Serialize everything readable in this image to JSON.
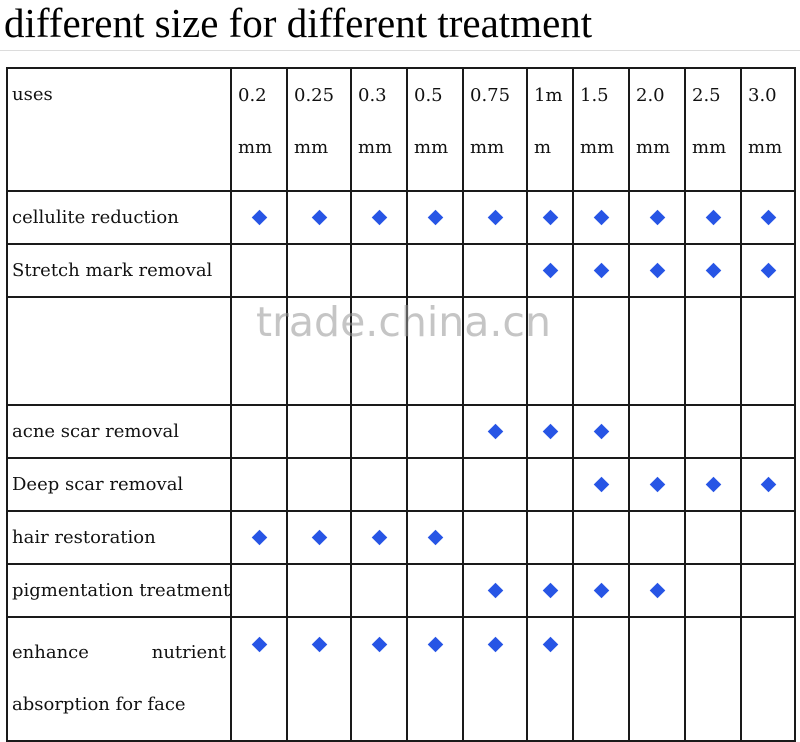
{
  "title": "different size for different treatment",
  "watermark": "trade.china.cn",
  "table": {
    "header_label": "uses",
    "sizes": [
      {
        "top": "0.2",
        "bottom": "mm"
      },
      {
        "top": "0.25",
        "bottom": "mm"
      },
      {
        "top": "0.3",
        "bottom": "mm"
      },
      {
        "top": "0.5",
        "bottom": "mm"
      },
      {
        "top": "0.75",
        "bottom": "mm"
      },
      {
        "top": "1m",
        "bottom": "m"
      },
      {
        "top": "1.5",
        "bottom": "mm"
      },
      {
        "top": "2.0",
        "bottom": "mm"
      },
      {
        "top": "2.5",
        "bottom": "mm"
      },
      {
        "top": "3.0",
        "bottom": "mm"
      }
    ],
    "rows": [
      {
        "use": "cellulite reduction",
        "marks": [
          1,
          1,
          1,
          1,
          1,
          1,
          1,
          1,
          1,
          1
        ]
      },
      {
        "use": "Stretch mark removal",
        "marks": [
          0,
          0,
          0,
          0,
          0,
          1,
          1,
          1,
          1,
          1
        ]
      },
      {
        "use": "",
        "marks": [
          0,
          0,
          0,
          0,
          0,
          0,
          0,
          0,
          0,
          0
        ]
      },
      {
        "use": "acne scar removal",
        "marks": [
          0,
          0,
          0,
          0,
          1,
          1,
          1,
          0,
          0,
          0
        ]
      },
      {
        "use": "Deep scar removal",
        "marks": [
          0,
          0,
          0,
          0,
          0,
          0,
          1,
          1,
          1,
          1
        ]
      },
      {
        "use": "hair restoration",
        "marks": [
          1,
          1,
          1,
          1,
          0,
          0,
          0,
          0,
          0,
          0
        ]
      },
      {
        "use": "pigmentation treatment",
        "marks": [
          0,
          0,
          0,
          0,
          1,
          1,
          1,
          1,
          0,
          0
        ]
      },
      {
        "use_line1_left": "enhance",
        "use_line1_right": "nutrient",
        "use_line2": "absorption for face",
        "marks": [
          1,
          1,
          1,
          1,
          1,
          1,
          0,
          0,
          0,
          0
        ]
      }
    ]
  },
  "colors": {
    "diamond": "#2755e5"
  }
}
